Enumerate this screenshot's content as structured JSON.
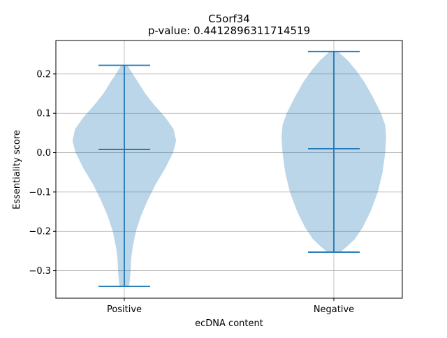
{
  "chart_data": {
    "type": "violin",
    "title": "C5orf34",
    "subtitle": "p-value: 0.4412896311714519",
    "xlabel": "ecDNA content",
    "ylabel": "Essentiality score",
    "categories": [
      "Positive",
      "Negative"
    ],
    "ylim": [
      -0.37,
      0.285
    ],
    "yticks": [
      -0.3,
      -0.2,
      -0.1,
      0.0,
      0.1,
      0.2
    ],
    "ytick_labels": [
      "−0.3",
      "−0.2",
      "−0.1",
      "0.0",
      "0.1",
      "0.2"
    ],
    "grid": true,
    "violin_color": "#1f77b4",
    "violin_fill_opacity": 0.3,
    "groups": [
      {
        "name": "Positive",
        "min": -0.34,
        "max": 0.222,
        "median": 0.008,
        "profile": [
          [
            -0.34,
            0.09
          ],
          [
            -0.32,
            0.11
          ],
          [
            -0.3,
            0.12
          ],
          [
            -0.27,
            0.13
          ],
          [
            -0.24,
            0.16
          ],
          [
            -0.2,
            0.22
          ],
          [
            -0.16,
            0.32
          ],
          [
            -0.12,
            0.45
          ],
          [
            -0.08,
            0.6
          ],
          [
            -0.04,
            0.78
          ],
          [
            0.0,
            0.93
          ],
          [
            0.03,
            0.99
          ],
          [
            0.06,
            0.94
          ],
          [
            0.09,
            0.78
          ],
          [
            0.12,
            0.58
          ],
          [
            0.15,
            0.4
          ],
          [
            0.18,
            0.26
          ],
          [
            0.2,
            0.16
          ],
          [
            0.222,
            0.06
          ]
        ]
      },
      {
        "name": "Negative",
        "min": -0.253,
        "max": 0.257,
        "median": 0.01,
        "profile": [
          [
            -0.253,
            0.12
          ],
          [
            -0.24,
            0.24
          ],
          [
            -0.22,
            0.4
          ],
          [
            -0.19,
            0.55
          ],
          [
            -0.15,
            0.7
          ],
          [
            -0.1,
            0.84
          ],
          [
            -0.05,
            0.93
          ],
          [
            0.0,
            0.98
          ],
          [
            0.04,
            1.0
          ],
          [
            0.07,
            0.98
          ],
          [
            0.1,
            0.9
          ],
          [
            0.14,
            0.75
          ],
          [
            0.18,
            0.58
          ],
          [
            0.21,
            0.42
          ],
          [
            0.235,
            0.26
          ],
          [
            0.257,
            0.08
          ]
        ]
      }
    ]
  }
}
